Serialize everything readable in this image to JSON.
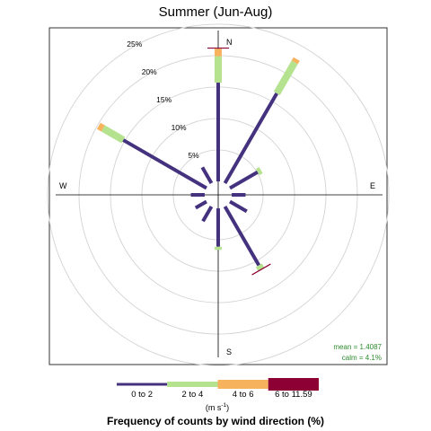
{
  "chart_data": {
    "type": "windrose",
    "title": "Summer (Jun-Aug)",
    "caption": "Frequency of counts by wind direction (%)",
    "units": "(m s",
    "units_exponent": "-1",
    "units_close": ")",
    "ring_labels": [
      "5%",
      "10%",
      "15%",
      "20%",
      "25%"
    ],
    "ring_values": [
      5,
      10,
      15,
      20,
      25
    ],
    "max_radius_pct": 26,
    "calm_radius_pct": 2.15,
    "directions": [
      {
        "label": "N"
      },
      {
        "label": "E"
      },
      {
        "label": "S"
      },
      {
        "label": "W"
      }
    ],
    "bins": [
      {
        "label": "0 to 2",
        "color": "#45327f"
      },
      {
        "label": "2 to 4",
        "color": "#b4e28e"
      },
      {
        "label": "4 to 6",
        "color": "#f7b25e"
      },
      {
        "label": "6 to 11.59",
        "color": "#8c0033"
      }
    ],
    "series": [
      {
        "direction": 0,
        "values": [
          15.7,
          4.2,
          1.2,
          0.1
        ]
      },
      {
        "direction": 30,
        "values": [
          16.5,
          5.7,
          0.6,
          0
        ]
      },
      {
        "direction": 60,
        "values": [
          5.1,
          0.6,
          0,
          0
        ]
      },
      {
        "direction": 90,
        "values": [
          2.2,
          0,
          0,
          0
        ]
      },
      {
        "direction": 120,
        "values": [
          3.1,
          0,
          0,
          0
        ]
      },
      {
        "direction": 150,
        "values": [
          10.8,
          0.7,
          0,
          0.05
        ]
      },
      {
        "direction": 180,
        "values": [
          6.1,
          0.5,
          0,
          0
        ]
      },
      {
        "direction": 210,
        "values": [
          2.7,
          0,
          0,
          0
        ]
      },
      {
        "direction": 240,
        "values": [
          2.0,
          0,
          0,
          0
        ]
      },
      {
        "direction": 270,
        "values": [
          2.2,
          0,
          0,
          0
        ]
      },
      {
        "direction": 300,
        "values": [
          15.3,
          3.7,
          0.8,
          0
        ]
      },
      {
        "direction": 330,
        "values": [
          2.9,
          0,
          0,
          0
        ]
      }
    ],
    "stats": {
      "mean": "mean = 1.4087",
      "calm": "calm = 4.1%"
    },
    "grid": true,
    "legend_position": "bottom"
  }
}
